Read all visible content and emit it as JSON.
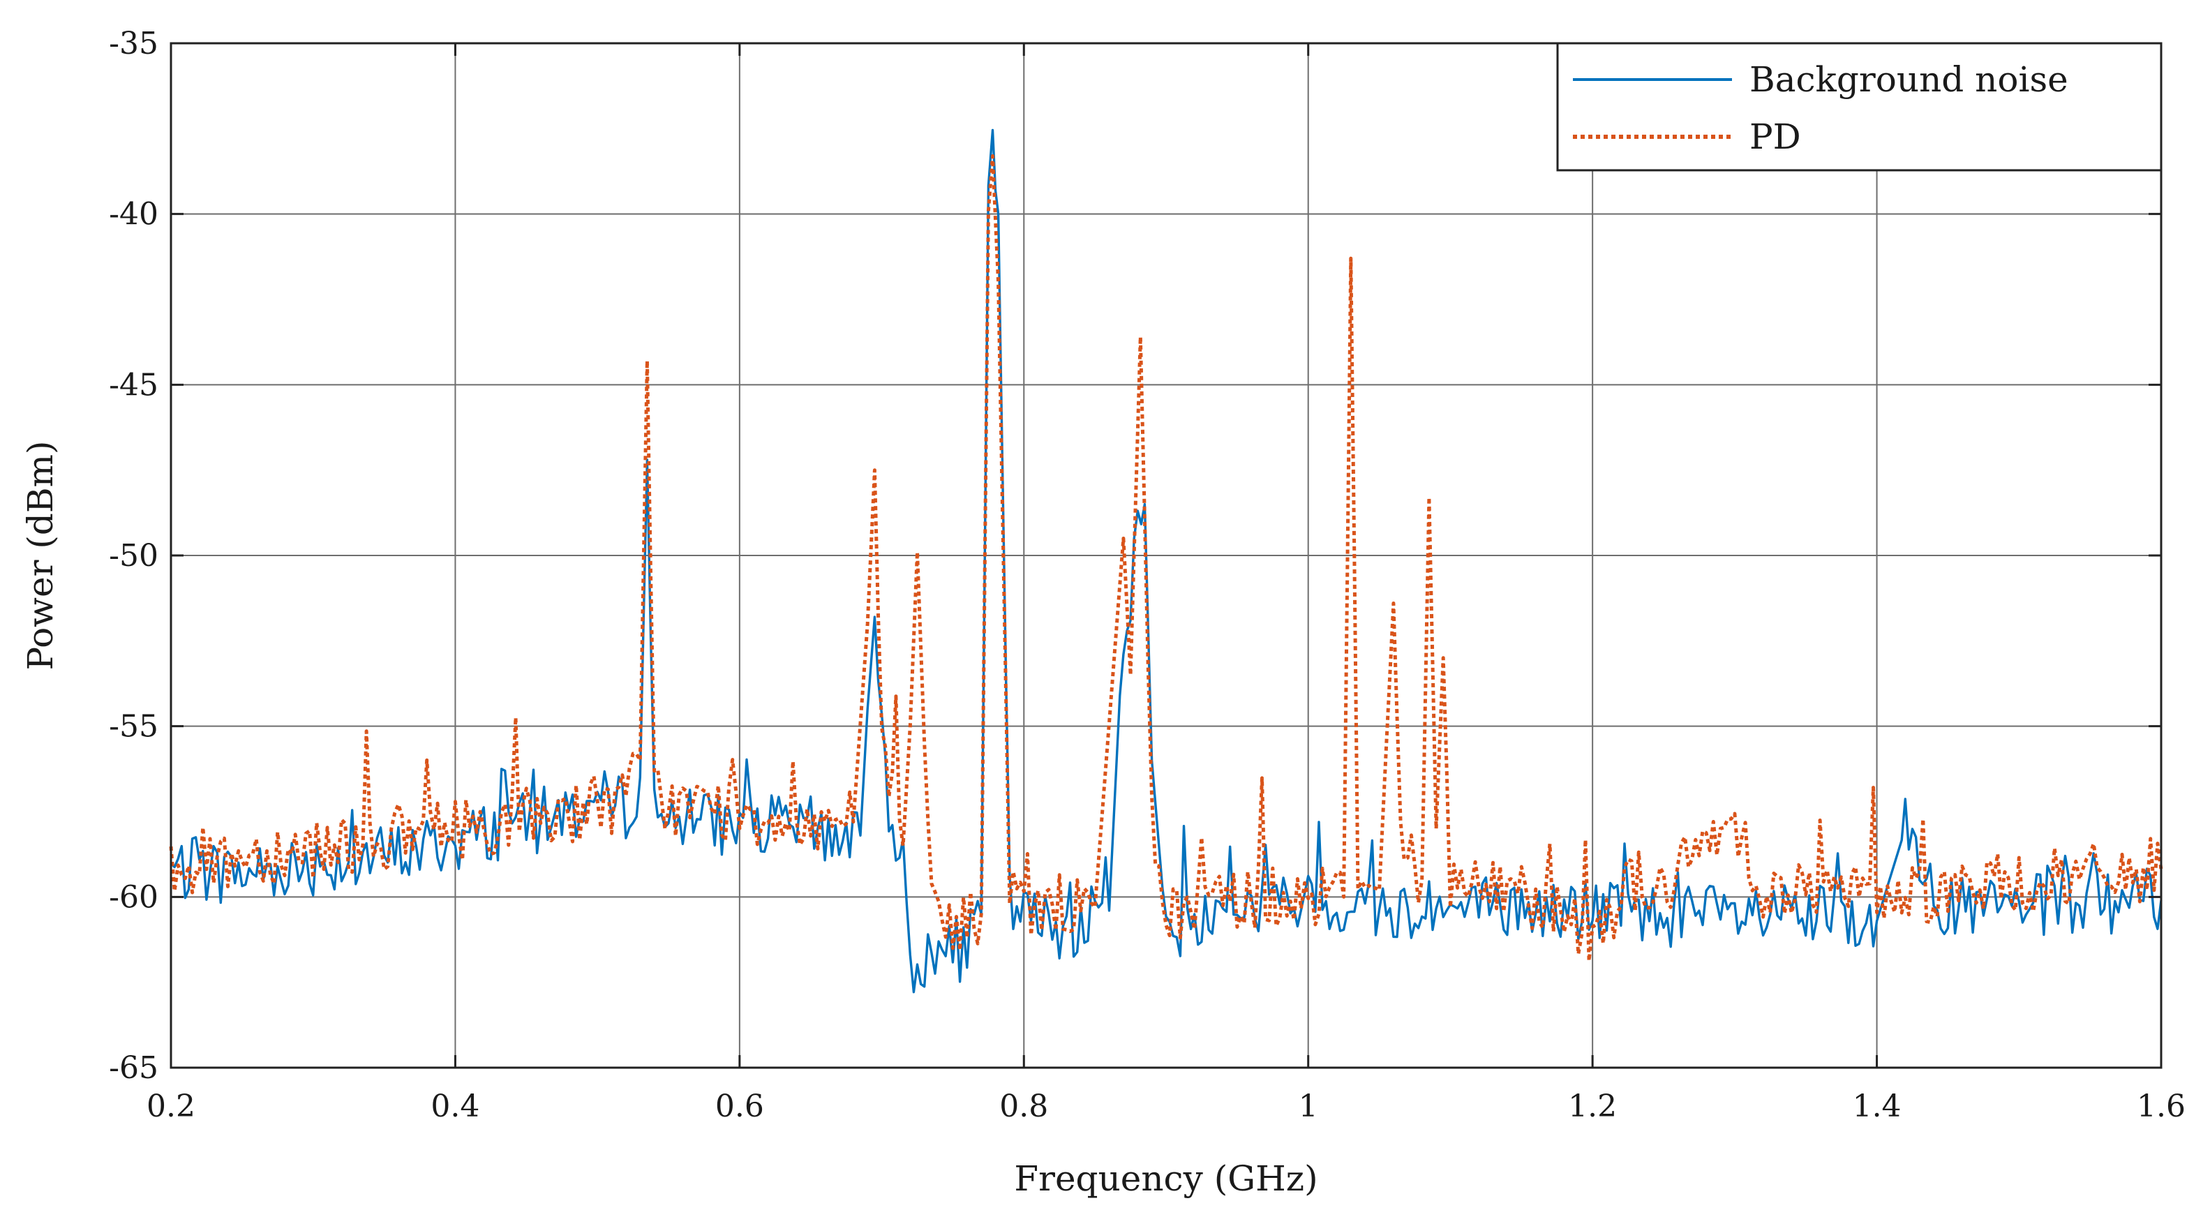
{
  "chart_data": {
    "type": "line",
    "title": "",
    "xlabel": "Frequency (GHz)",
    "ylabel": "Power (dBm)",
    "xlim": [
      0.2,
      1.6
    ],
    "ylim": [
      -65,
      -35
    ],
    "xticks": [
      0.2,
      0.4,
      0.6,
      0.8,
      1.0,
      1.2,
      1.4,
      1.6
    ],
    "xtick_labels": [
      "0.2",
      "0.4",
      "0.6",
      "0.8",
      "1",
      "1.2",
      "1.4",
      "1.6"
    ],
    "yticks": [
      -65,
      -60,
      -55,
      -50,
      -45,
      -40,
      -35
    ],
    "ytick_labels": [
      "-65",
      "-60",
      "-55",
      "-50",
      "-45",
      "-40",
      "-35"
    ],
    "grid": true,
    "legend_position": "top-right",
    "series": [
      {
        "name": "Background noise",
        "color": "#0072BD",
        "style": "solid",
        "points": [
          [
            0.2,
            -59.2
          ],
          [
            0.25,
            -59.3
          ],
          [
            0.3,
            -59.0
          ],
          [
            0.35,
            -58.8
          ],
          [
            0.4,
            -58.4
          ],
          [
            0.43,
            -58.0
          ],
          [
            0.435,
            -55.7
          ],
          [
            0.44,
            -58.0
          ],
          [
            0.47,
            -57.6
          ],
          [
            0.5,
            -57.2
          ],
          [
            0.52,
            -57.4
          ],
          [
            0.53,
            -56.5
          ],
          [
            0.535,
            -47.2
          ],
          [
            0.54,
            -57.5
          ],
          [
            0.55,
            -57.7
          ],
          [
            0.6,
            -57.9
          ],
          [
            0.65,
            -58.0
          ],
          [
            0.685,
            -58.2
          ],
          [
            0.69,
            -54.5
          ],
          [
            0.695,
            -51.8
          ],
          [
            0.7,
            -55.5
          ],
          [
            0.705,
            -58.0
          ],
          [
            0.715,
            -58.3
          ],
          [
            0.72,
            -62.0
          ],
          [
            0.73,
            -61.8
          ],
          [
            0.76,
            -61.5
          ],
          [
            0.77,
            -60.5
          ],
          [
            0.775,
            -39.5
          ],
          [
            0.778,
            -38.1
          ],
          [
            0.782,
            -40.0
          ],
          [
            0.79,
            -60.2
          ],
          [
            0.8,
            -60.6
          ],
          [
            0.83,
            -60.9
          ],
          [
            0.86,
            -60.4
          ],
          [
            0.87,
            -52.0
          ],
          [
            0.875,
            -51.5
          ],
          [
            0.88,
            -49.0
          ],
          [
            0.885,
            -48.5
          ],
          [
            0.89,
            -56.0
          ],
          [
            0.9,
            -61.0
          ],
          [
            0.95,
            -60.3
          ],
          [
            1.0,
            -60.2
          ],
          [
            1.05,
            -60.3
          ],
          [
            1.1,
            -60.4
          ],
          [
            1.15,
            -60.4
          ],
          [
            1.2,
            -60.4
          ],
          [
            1.25,
            -60.5
          ],
          [
            1.3,
            -60.6
          ],
          [
            1.35,
            -60.6
          ],
          [
            1.4,
            -60.7
          ],
          [
            1.42,
            -58.0
          ],
          [
            1.45,
            -60.4
          ],
          [
            1.5,
            -60.3
          ],
          [
            1.55,
            -60.2
          ],
          [
            1.6,
            -60.1
          ]
        ]
      },
      {
        "name": "PD",
        "color": "#D95319",
        "style": "dotted",
        "points": [
          [
            0.2,
            -59.0
          ],
          [
            0.25,
            -58.8
          ],
          [
            0.3,
            -58.5
          ],
          [
            0.35,
            -58.3
          ],
          [
            0.4,
            -58.0
          ],
          [
            0.45,
            -57.7
          ],
          [
            0.5,
            -57.3
          ],
          [
            0.52,
            -57.2
          ],
          [
            0.53,
            -56.0
          ],
          [
            0.535,
            -44.3
          ],
          [
            0.54,
            -56.8
          ],
          [
            0.55,
            -57.3
          ],
          [
            0.6,
            -57.5
          ],
          [
            0.65,
            -57.8
          ],
          [
            0.68,
            -57.8
          ],
          [
            0.69,
            -52.0
          ],
          [
            0.695,
            -47.5
          ],
          [
            0.7,
            -56.0
          ],
          [
            0.71,
            -57.5
          ],
          [
            0.715,
            -58.5
          ],
          [
            0.72,
            -55.0
          ],
          [
            0.725,
            -49.9
          ],
          [
            0.73,
            -55.5
          ],
          [
            0.735,
            -60.0
          ],
          [
            0.75,
            -61.0
          ],
          [
            0.77,
            -60.5
          ],
          [
            0.775,
            -40.0
          ],
          [
            0.778,
            -38.3
          ],
          [
            0.782,
            -42.0
          ],
          [
            0.79,
            -60.0
          ],
          [
            0.8,
            -60.2
          ],
          [
            0.85,
            -60.3
          ],
          [
            0.87,
            -49.5
          ],
          [
            0.875,
            -53.5
          ],
          [
            0.882,
            -43.6
          ],
          [
            0.89,
            -58.0
          ],
          [
            0.9,
            -60.5
          ],
          [
            0.95,
            -60.0
          ],
          [
            1.0,
            -59.9
          ],
          [
            1.025,
            -60.0
          ],
          [
            1.03,
            -41.3
          ],
          [
            1.035,
            -59.0
          ],
          [
            1.05,
            -59.8
          ],
          [
            1.055,
            -55.5
          ],
          [
            1.06,
            -51.4
          ],
          [
            1.065,
            -58.0
          ],
          [
            1.08,
            -59.5
          ],
          [
            1.085,
            -48.3
          ],
          [
            1.09,
            -58.0
          ],
          [
            1.095,
            -53.0
          ],
          [
            1.1,
            -59.7
          ],
          [
            1.15,
            -59.8
          ],
          [
            1.2,
            -61.0
          ],
          [
            1.23,
            -59.5
          ],
          [
            1.25,
            -59.8
          ],
          [
            1.3,
            -57.6
          ],
          [
            1.32,
            -59.8
          ],
          [
            1.4,
            -59.9
          ],
          [
            1.45,
            -59.8
          ],
          [
            1.5,
            -59.6
          ],
          [
            1.55,
            -59.4
          ],
          [
            1.6,
            -59.2
          ]
        ]
      }
    ]
  }
}
